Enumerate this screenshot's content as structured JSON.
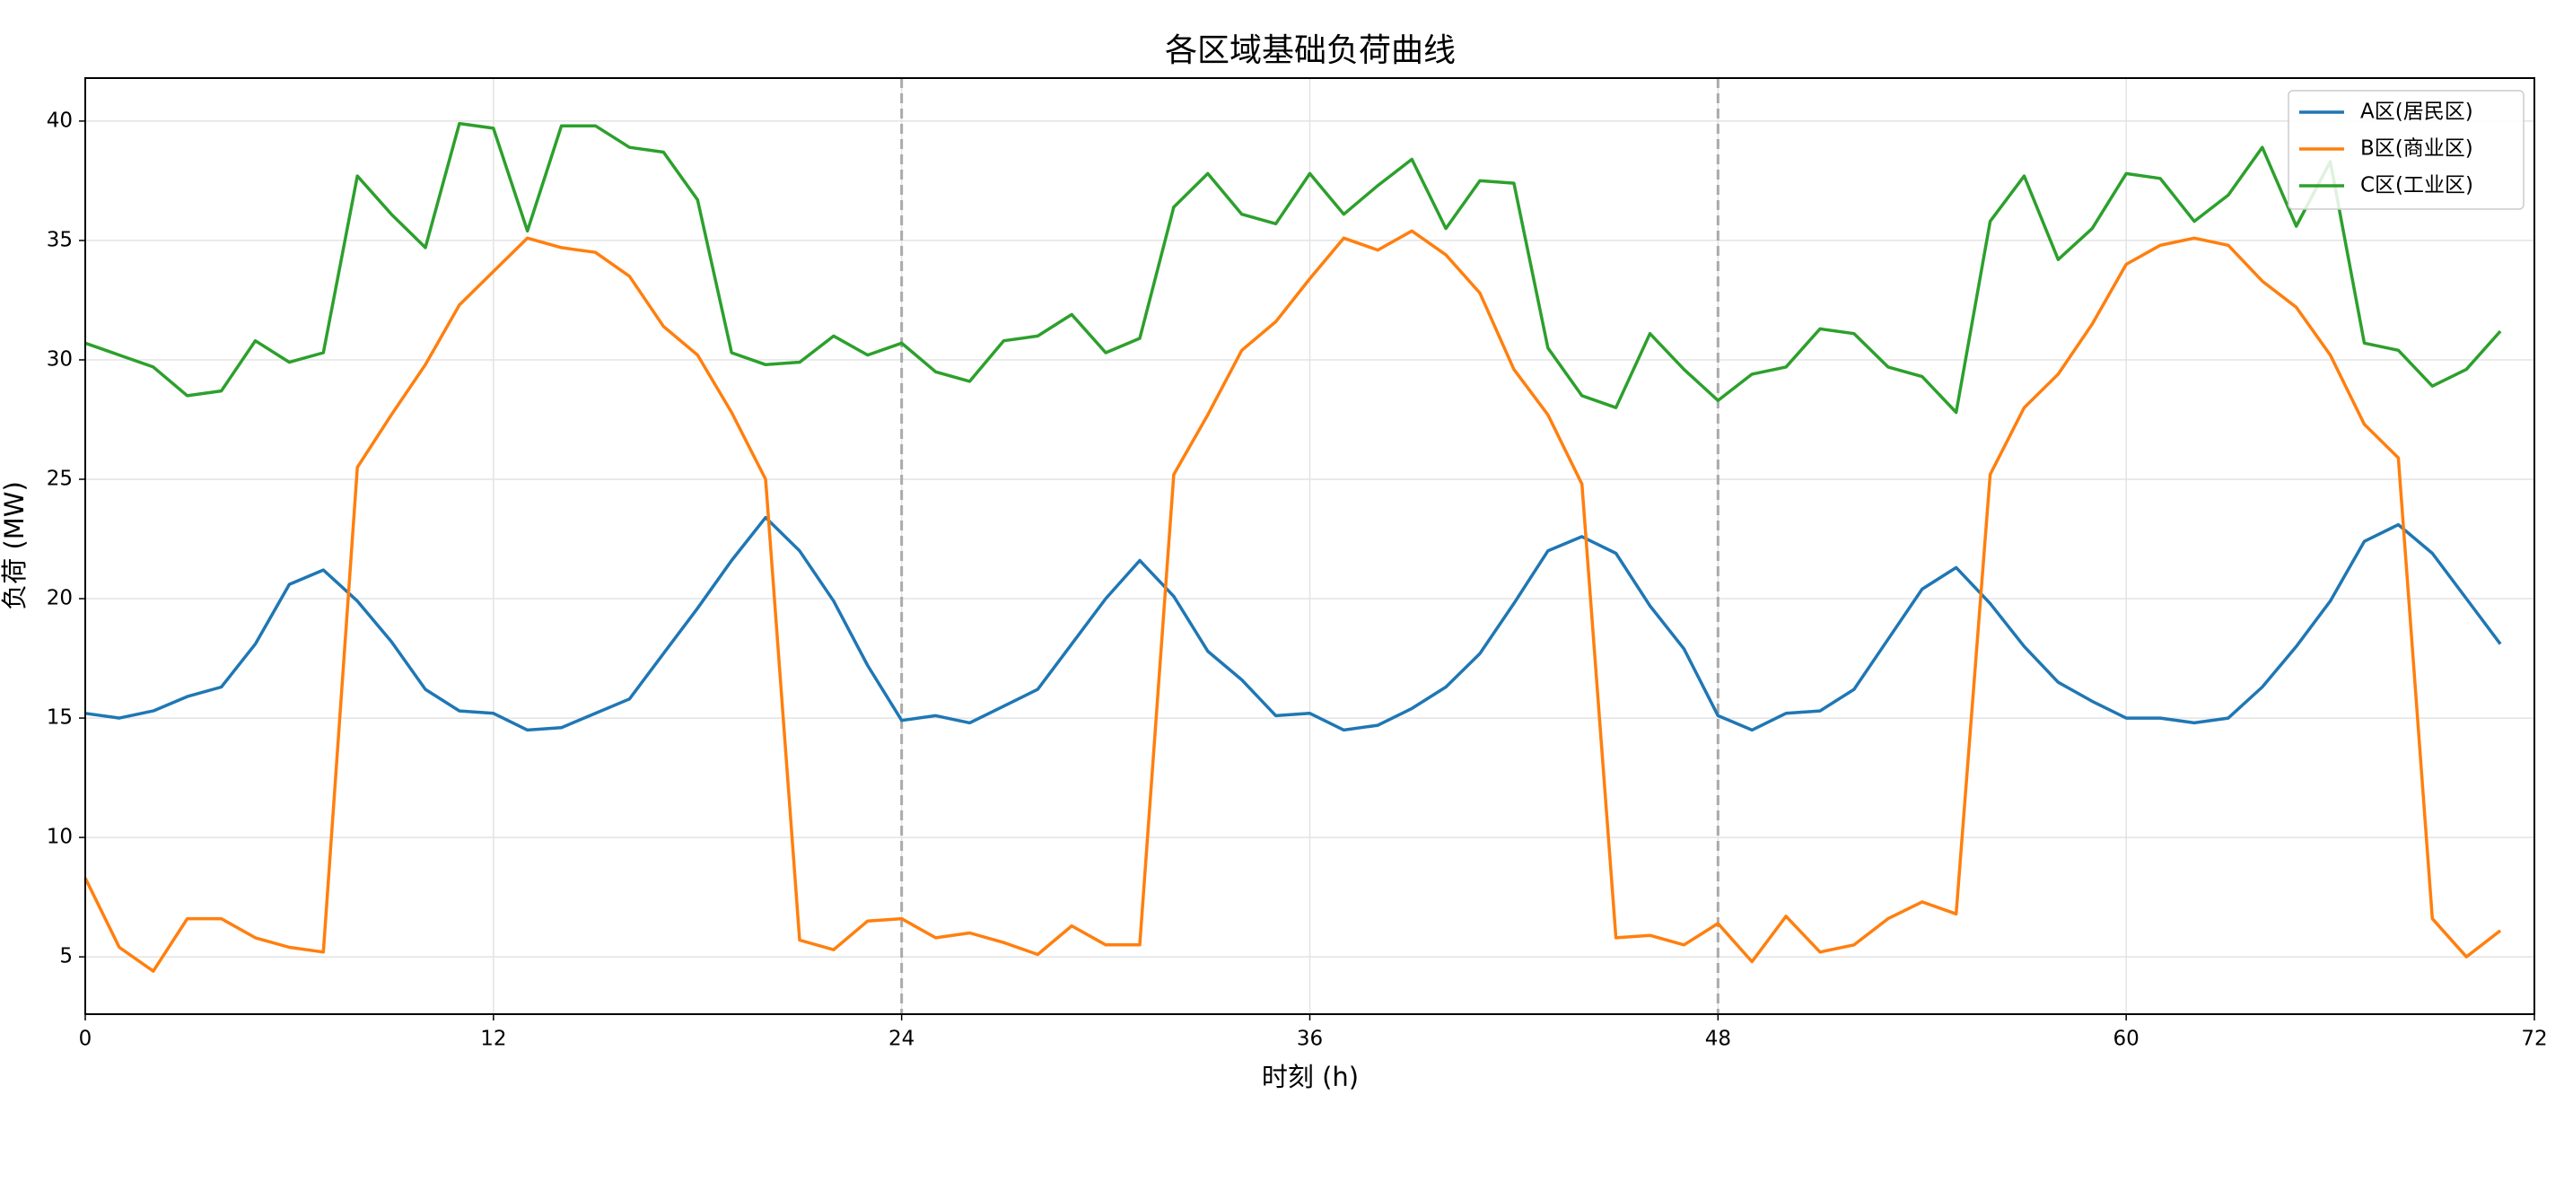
{
  "chart_data": {
    "type": "line",
    "title": "各区域基础负荷曲线",
    "xlabel": "时刻 (h)",
    "ylabel": "负荷 (MW)",
    "x": [
      0,
      1,
      2,
      3,
      4,
      5,
      6,
      7,
      8,
      9,
      10,
      11,
      12,
      13,
      14,
      15,
      16,
      17,
      18,
      19,
      20,
      21,
      22,
      23,
      24,
      25,
      26,
      27,
      28,
      29,
      30,
      31,
      32,
      33,
      34,
      35,
      36,
      37,
      38,
      39,
      40,
      41,
      42,
      43,
      44,
      45,
      46,
      47,
      48,
      49,
      50,
      51,
      52,
      53,
      54,
      55,
      56,
      57,
      58,
      59,
      60,
      61,
      62,
      63,
      64,
      65,
      66,
      67,
      68,
      69,
      70,
      71
    ],
    "series": [
      {
        "name": "A区(居民区)",
        "color": "#1f77b4",
        "values": [
          15.2,
          15.0,
          15.3,
          15.9,
          16.3,
          18.1,
          20.6,
          21.2,
          19.9,
          18.2,
          16.2,
          15.3,
          15.2,
          14.5,
          14.6,
          15.2,
          15.8,
          17.7,
          19.6,
          21.6,
          23.4,
          22.0,
          19.9,
          17.2,
          14.9,
          15.1,
          14.8,
          15.5,
          16.2,
          18.1,
          20.0,
          21.6,
          20.1,
          17.8,
          16.6,
          15.1,
          15.2,
          14.5,
          14.7,
          15.4,
          16.3,
          17.7,
          19.8,
          22.0,
          22.6,
          21.9,
          19.7,
          17.9,
          15.1,
          14.5,
          15.2,
          15.3,
          16.2,
          18.3,
          20.4,
          21.3,
          19.8,
          18.0,
          16.5,
          15.7,
          15.0,
          15.0,
          14.8,
          15.0,
          16.3,
          18.0,
          19.9,
          22.4,
          23.1,
          21.9,
          20.0,
          18.1
        ]
      },
      {
        "name": "B区(商业区)",
        "color": "#ff7f0e",
        "values": [
          8.3,
          5.4,
          4.4,
          6.6,
          6.6,
          5.8,
          5.4,
          5.2,
          25.5,
          27.7,
          29.8,
          32.3,
          33.7,
          35.1,
          34.7,
          34.5,
          33.5,
          31.4,
          30.2,
          27.8,
          25.0,
          5.7,
          5.3,
          6.5,
          6.6,
          5.8,
          6.0,
          5.6,
          5.1,
          6.3,
          5.5,
          5.5,
          25.2,
          27.7,
          30.4,
          31.6,
          33.4,
          35.1,
          34.6,
          35.4,
          34.4,
          32.8,
          29.6,
          27.7,
          24.8,
          5.8,
          5.9,
          5.5,
          6.4,
          4.8,
          6.7,
          5.2,
          5.5,
          6.6,
          7.3,
          6.8,
          25.2,
          28.0,
          29.4,
          31.5,
          34.0,
          34.8,
          35.1,
          34.8,
          33.3,
          32.2,
          30.2,
          27.3,
          25.9,
          6.6,
          5.0,
          6.1
        ]
      },
      {
        "name": "C区(工业区)",
        "color": "#2ca02c",
        "values": [
          30.7,
          30.2,
          29.7,
          28.5,
          28.7,
          30.8,
          29.9,
          30.3,
          37.7,
          36.1,
          34.7,
          39.9,
          39.7,
          35.4,
          39.8,
          39.8,
          38.9,
          38.7,
          36.7,
          30.3,
          29.8,
          29.9,
          31.0,
          30.2,
          30.7,
          29.5,
          29.1,
          30.8,
          31.0,
          31.9,
          30.3,
          30.9,
          36.4,
          37.8,
          36.1,
          35.7,
          37.8,
          36.1,
          37.3,
          38.4,
          35.5,
          37.5,
          37.4,
          30.5,
          28.5,
          28.0,
          31.1,
          29.6,
          28.3,
          29.4,
          29.7,
          31.3,
          31.1,
          29.7,
          29.3,
          27.8,
          35.8,
          37.7,
          34.2,
          35.5,
          37.8,
          37.6,
          35.8,
          36.9,
          38.9,
          35.6,
          38.3,
          30.7,
          30.4,
          28.9,
          29.6,
          31.2
        ]
      }
    ],
    "xlim": [
      0,
      72
    ],
    "xticks": [
      0,
      12,
      24,
      36,
      48,
      60,
      72
    ],
    "ylim": [
      2.6,
      41.8
    ],
    "yticks": [
      5,
      10,
      15,
      20,
      25,
      30,
      35,
      40
    ],
    "vlines": [
      24,
      48
    ],
    "grid": true,
    "legend": "upper right"
  }
}
